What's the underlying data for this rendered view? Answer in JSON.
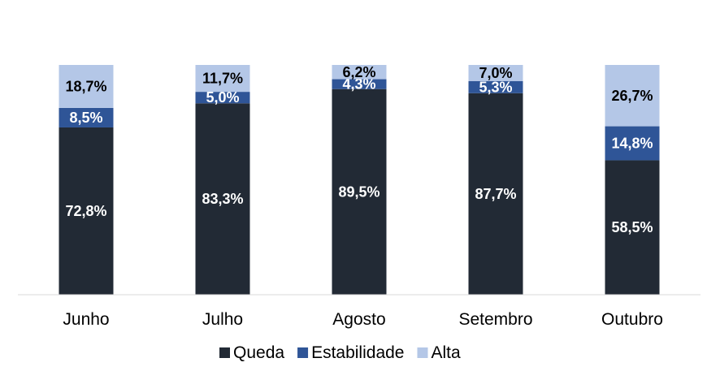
{
  "chart_data": {
    "type": "bar",
    "stacked": true,
    "percent_stacked": true,
    "categories": [
      "Junho",
      "Julho",
      "Agosto",
      "Setembro",
      "Outubro"
    ],
    "series": [
      {
        "name": "Queda",
        "values": [
          72.8,
          83.3,
          89.5,
          87.7,
          58.5
        ],
        "labels": [
          "72,8%",
          "83,3%",
          "89,5%",
          "87,7%",
          "58,5%"
        ],
        "color": "#222a35",
        "label_color": "#ffffff"
      },
      {
        "name": "Estabilidade",
        "values": [
          8.5,
          5.0,
          4.3,
          5.3,
          14.8
        ],
        "labels": [
          "8,5%",
          "5,0%",
          "4,3%",
          "5,3%",
          "14,8%"
        ],
        "color": "#2f5597",
        "label_color": "#ffffff"
      },
      {
        "name": "Alta",
        "values": [
          18.7,
          11.7,
          6.2,
          7.0,
          26.7
        ],
        "labels": [
          "18,7%",
          "11,7%",
          "6,2%",
          "7,0%",
          "26,7%"
        ],
        "color": "#b4c7e7",
        "label_color": "#000000"
      }
    ],
    "ylim": [
      0,
      100
    ],
    "grid": false,
    "legend_position": "bottom"
  }
}
